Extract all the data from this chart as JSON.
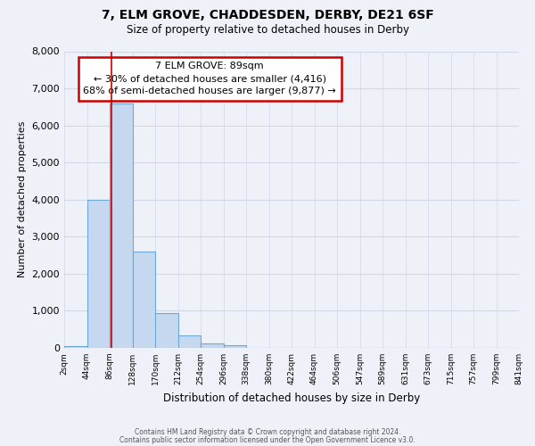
{
  "title": "7, ELM GROVE, CHADDESDEN, DERBY, DE21 6SF",
  "subtitle": "Size of property relative to detached houses in Derby",
  "xlabel": "Distribution of detached houses by size in Derby",
  "ylabel": "Number of detached properties",
  "bin_labels": [
    "2sqm",
    "44sqm",
    "86sqm",
    "128sqm",
    "170sqm",
    "212sqm",
    "254sqm",
    "296sqm",
    "338sqm",
    "380sqm",
    "422sqm",
    "464sqm",
    "506sqm",
    "547sqm",
    "589sqm",
    "631sqm",
    "673sqm",
    "715sqm",
    "757sqm",
    "799sqm",
    "841sqm"
  ],
  "bar_values": [
    50,
    4000,
    6600,
    2600,
    950,
    325,
    125,
    75,
    0,
    0,
    0,
    0,
    0,
    0,
    0,
    0,
    0,
    0,
    0,
    0
  ],
  "bar_color": "#c5d8f0",
  "bar_edge_color": "#6aaad4",
  "annotation_label": "7 ELM GROVE: 89sqm",
  "annotation_line1": "← 30% of detached houses are smaller (4,416)",
  "annotation_line2": "68% of semi-detached houses are larger (9,877) →",
  "annotation_box_color": "#ffffff",
  "annotation_box_edge_color": "#cc0000",
  "red_line_color": "#cc0000",
  "red_line_x": 89,
  "ylim": [
    0,
    8000
  ],
  "yticks": [
    0,
    1000,
    2000,
    3000,
    4000,
    5000,
    6000,
    7000,
    8000
  ],
  "grid_color": "#d0d8e8",
  "background_color": "#eef2f8",
  "footer_line1": "Contains HM Land Registry data © Crown copyright and database right 2024.",
  "footer_line2": "Contains public sector information licensed under the Open Government Licence v3.0."
}
